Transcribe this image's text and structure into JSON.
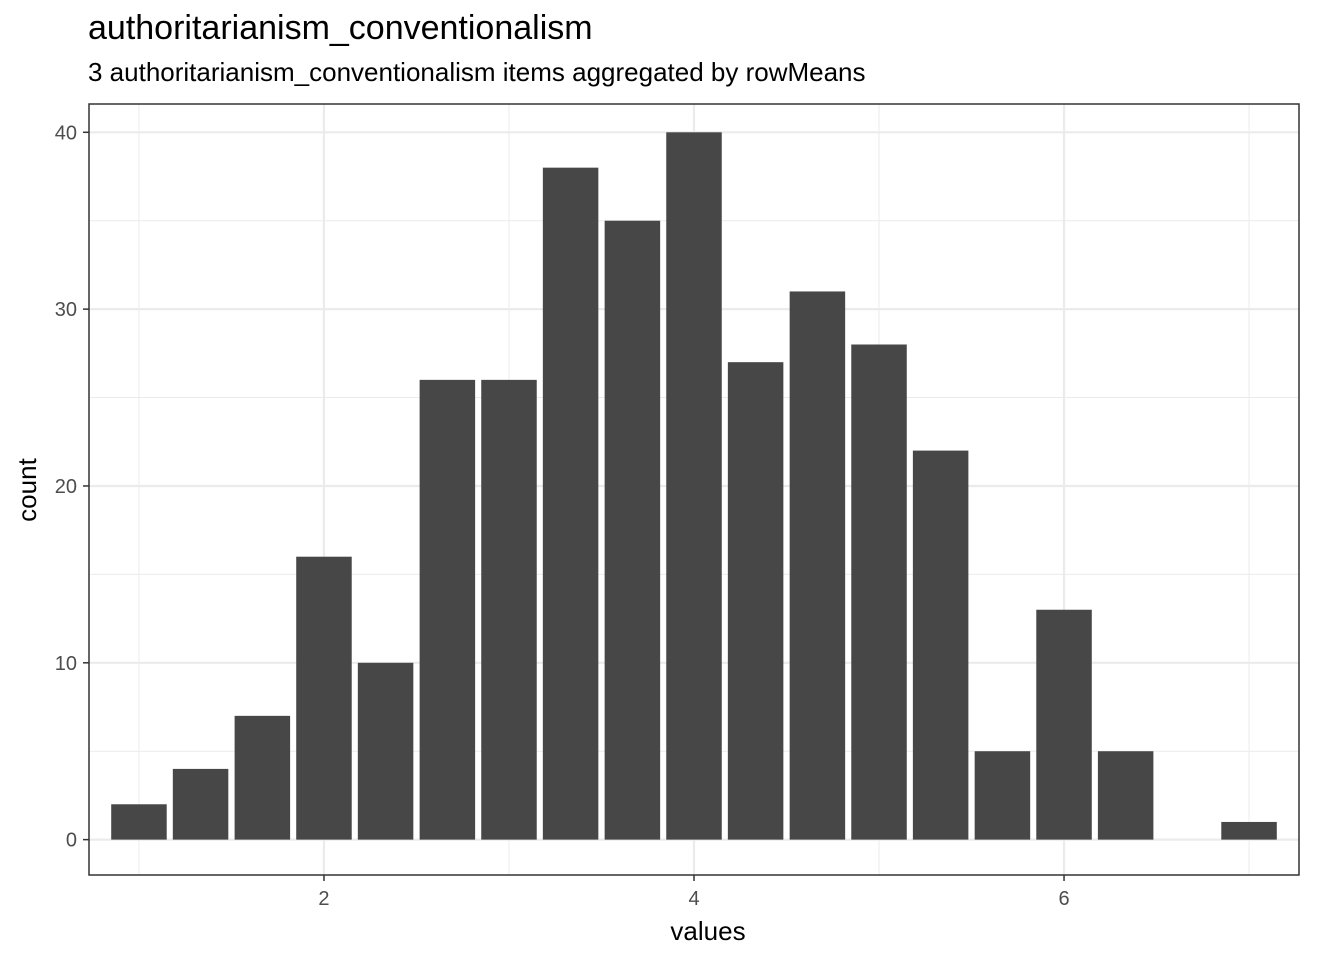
{
  "chart_data": {
    "type": "bar",
    "title": "authoritarianism_conventionalism",
    "subtitle": "3 authoritarianism_conventionalism items aggregated by rowMeans",
    "xlabel": "values",
    "ylabel": "count",
    "x": [
      1.0,
      1.333,
      1.667,
      2.0,
      2.333,
      2.667,
      3.0,
      3.333,
      3.667,
      4.0,
      4.333,
      4.667,
      5.0,
      5.333,
      5.667,
      6.0,
      6.333,
      7.0
    ],
    "values": [
      2,
      4,
      7,
      16,
      10,
      26,
      26,
      38,
      35,
      40,
      27,
      31,
      28,
      22,
      5,
      13,
      5,
      1
    ],
    "bar_width": 0.3,
    "xlim": [
      0.73,
      7.27
    ],
    "ylim": [
      -2,
      41.6
    ],
    "x_major_ticks": [
      2,
      4,
      6
    ],
    "x_minor_ticks": [
      1,
      3,
      5,
      7
    ],
    "y_major_ticks": [
      0,
      10,
      20,
      30,
      40
    ],
    "y_minor_ticks": [
      5,
      15,
      25,
      35
    ],
    "grid": true,
    "colors": {
      "bar": "#474747",
      "grid": "#ebebeb",
      "panel_border": "#333333",
      "tick_text": "#4d4d4d"
    }
  }
}
